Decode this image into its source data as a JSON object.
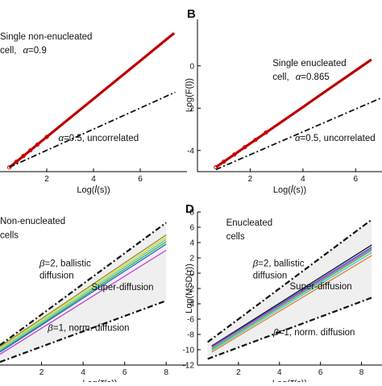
{
  "chart_data": [
    {
      "panel": "A",
      "panel_label_visible": false,
      "type": "line",
      "xlabel_parts": [
        "Log(",
        "l",
        "(s))"
      ],
      "ylabel": "",
      "xlim": [
        0,
        8
      ],
      "ylim": [
        -5,
        2.2
      ],
      "xticks": [
        2,
        4,
        6
      ],
      "yticks": [],
      "series": [
        {
          "style": "data",
          "color": "#cc0000",
          "x": [
            0.4,
            0.7,
            1.0,
            1.3,
            1.6,
            2.0,
            2.5,
            3.0,
            3.5,
            4.0,
            4.5,
            5.0,
            5.5,
            6.0,
            6.5,
            7.0,
            7.45
          ],
          "y": [
            -4.8,
            -4.53,
            -4.26,
            -3.99,
            -3.72,
            -3.36,
            -2.91,
            -2.46,
            -2.01,
            -1.56,
            -1.11,
            -0.66,
            -0.21,
            0.24,
            0.69,
            1.14,
            1.55
          ]
        },
        {
          "style": "dashdot",
          "color": "#111111",
          "x": [
            0.4,
            7.5
          ],
          "y": [
            -4.79,
            -1.245
          ]
        }
      ],
      "annotations": [
        {
          "id": "a1",
          "text": "Single non-enucleated",
          "x": 0.0,
          "y": 1.25
        },
        {
          "id": "a2",
          "text": "cell,",
          "x": 0.0,
          "y": 0.6,
          "greek": "α",
          "value": "=0.9"
        },
        {
          "id": "a3",
          "greek": "α",
          "text": "=0.5, uncorrelated",
          "x": 2.5,
          "y": -3.55
        }
      ]
    },
    {
      "panel": "B",
      "panel_label_visible": true,
      "type": "line",
      "xlabel_parts": [
        "Log(",
        "l",
        "(s))"
      ],
      "ylabel": "Log(F(l))",
      "xlim": [
        0,
        7
      ],
      "ylim": [
        -5,
        2.2
      ],
      "xticks": [
        2,
        4,
        6
      ],
      "yticks": [
        -4,
        -2,
        0
      ],
      "series": [
        {
          "style": "data",
          "color": "#cc0000",
          "x": [
            0.7,
            1.0,
            1.4,
            1.8,
            2.2,
            2.6,
            3.0,
            3.5,
            4.0,
            4.5,
            5.0,
            5.5,
            6.0,
            6.6
          ],
          "y": [
            -4.79,
            -4.53,
            -4.19,
            -3.84,
            -3.5,
            -3.15,
            -2.81,
            -2.38,
            -1.95,
            -1.51,
            -1.08,
            -0.65,
            -0.22,
            0.3
          ]
        },
        {
          "style": "dashdot",
          "color": "#111111",
          "x": [
            0.7,
            7.0
          ],
          "y": [
            -4.9,
            -1.5
          ]
        }
      ],
      "annotations": [
        {
          "id": "b1",
          "text": "Single enucleated",
          "x": 2.85,
          "y": 0.0
        },
        {
          "id": "b2",
          "text": "cell,",
          "x": 2.85,
          "y": -0.65,
          "greek": "α",
          "value": "=0.865"
        },
        {
          "id": "b3",
          "greek": "α",
          "text": "=0.5, uncorrelated",
          "x": 3.7,
          "y": -3.55
        }
      ]
    },
    {
      "panel": "C",
      "panel_label_visible": false,
      "type": "line",
      "xlabel_parts": [
        "Log(",
        "τ",
        "(s))"
      ],
      "ylabel": "",
      "xlim": [
        0,
        9
      ],
      "ylim": [
        -12,
        8
      ],
      "xticks": [
        2,
        4,
        6,
        8
      ],
      "yticks": [],
      "series": [
        {
          "style": "bound",
          "color": "#111111",
          "x": [
            0,
            8
          ],
          "y": [
            -9.4,
            6.6
          ]
        },
        {
          "style": "bound",
          "color": "#111111",
          "x": [
            0,
            8
          ],
          "y": [
            -11.6,
            -3.6
          ]
        },
        {
          "style": "data",
          "color": "#8a8a2a",
          "x": [
            0,
            8
          ],
          "y": [
            -9.6,
            5.0
          ]
        },
        {
          "style": "data",
          "color": "#d8d800",
          "x": [
            0,
            8
          ],
          "y": [
            -9.8,
            4.7
          ]
        },
        {
          "style": "data",
          "color": "#40c8c8",
          "x": [
            0,
            8
          ],
          "y": [
            -10.0,
            4.4
          ]
        },
        {
          "style": "data",
          "color": "#30b030",
          "x": [
            0,
            8
          ],
          "y": [
            -10.2,
            4.1
          ]
        },
        {
          "style": "data",
          "color": "#3060e0",
          "x": [
            0,
            8
          ],
          "y": [
            -10.3,
            3.8
          ]
        },
        {
          "style": "data",
          "color": "#c040d0",
          "x": [
            0,
            8
          ],
          "y": [
            -10.6,
            3.0
          ]
        }
      ],
      "annotations": [
        {
          "id": "c1",
          "text": "Non-enucleated",
          "x": 0.0,
          "y": 6.4
        },
        {
          "id": "c2",
          "text": "cells",
          "x": 0.0,
          "y": 4.6
        },
        {
          "id": "c3",
          "greek": "β",
          "text": "=2, ballistic",
          "x": 1.9,
          "y": 0.9
        },
        {
          "id": "c4",
          "text": "diffusion",
          "x": 1.9,
          "y": -0.7
        },
        {
          "id": "c5",
          "text": "Super-diffusion",
          "x": 4.4,
          "y": -2.2
        },
        {
          "id": "c6",
          "greek": "β",
          "text": "=1, norm. diffusion",
          "x": 2.3,
          "y": -7.5
        }
      ]
    },
    {
      "panel": "D",
      "panel_label_visible": true,
      "type": "line",
      "xlabel_parts": [
        "Log(",
        "τ",
        "(s))"
      ],
      "ylabel": "Log(MSD(τ))",
      "xlim": [
        0,
        9
      ],
      "ylim": [
        -12,
        8
      ],
      "xticks": [
        2,
        4,
        6,
        8
      ],
      "yticks": [
        -12,
        -10,
        -8,
        -6,
        -4,
        -2,
        0,
        2,
        4,
        6,
        8
      ],
      "series": [
        {
          "style": "bound",
          "color": "#111111",
          "x": [
            0.5,
            8.5
          ],
          "y": [
            -9.0,
            7.0
          ]
        },
        {
          "style": "bound",
          "color": "#111111",
          "x": [
            0.5,
            8.5
          ],
          "y": [
            -11.2,
            -3.2
          ]
        },
        {
          "style": "data",
          "color": "#111111",
          "x": [
            0.7,
            8.5
          ],
          "y": [
            -9.5,
            3.7
          ]
        },
        {
          "style": "data",
          "color": "#3060e0",
          "x": [
            0.7,
            8.5
          ],
          "y": [
            -9.6,
            3.4
          ]
        },
        {
          "style": "data",
          "color": "#c040d0",
          "x": [
            0.7,
            8.5
          ],
          "y": [
            -9.7,
            3.2
          ]
        },
        {
          "style": "data",
          "color": "#30b030",
          "x": [
            0.7,
            8.5
          ],
          "y": [
            -9.9,
            3.0
          ]
        },
        {
          "style": "data",
          "color": "#40c8c8",
          "x": [
            0.7,
            8.5
          ],
          "y": [
            -10.1,
            2.7
          ]
        },
        {
          "style": "data",
          "color": "#e08030",
          "x": [
            0.7,
            8.5
          ],
          "y": [
            -10.3,
            2.3
          ]
        }
      ],
      "annotations": [
        {
          "id": "d1",
          "text": "Enucleated",
          "x": 1.4,
          "y": 6.2
        },
        {
          "id": "d2",
          "text": "cells",
          "x": 1.4,
          "y": 4.4
        },
        {
          "id": "d3",
          "greek": "β",
          "text": "=2, ballistic",
          "x": 2.7,
          "y": 0.9
        },
        {
          "id": "d4",
          "text": "diffusion",
          "x": 2.7,
          "y": -0.7
        },
        {
          "id": "d5",
          "text": "Super-diffusion",
          "x": 4.5,
          "y": -2.1
        },
        {
          "id": "d6",
          "greek": "β",
          "text": "=1, norm. diffusion",
          "x": 3.7,
          "y": -8.1
        }
      ]
    }
  ]
}
